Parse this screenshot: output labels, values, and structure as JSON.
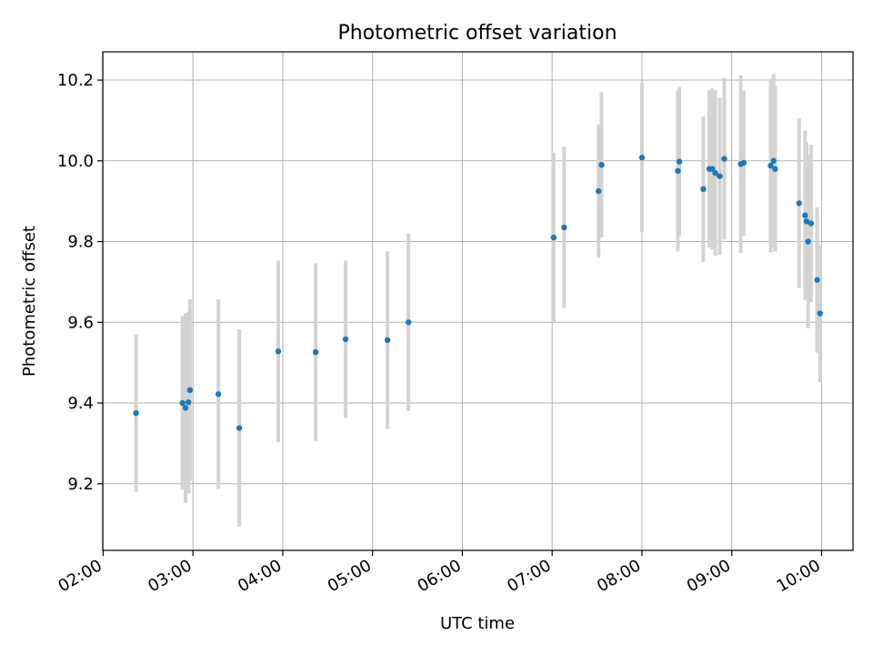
{
  "chart_data": {
    "type": "scatter",
    "title": "Photometric offset variation",
    "xlabel": "UTC time",
    "ylabel": "Photometric offset",
    "x_tick_labels": [
      "02:00",
      "03:00",
      "04:00",
      "05:00",
      "06:00",
      "07:00",
      "08:00",
      "09:00",
      "10:00"
    ],
    "y_tick_labels": [
      "9.2",
      "9.4",
      "9.6",
      "9.8",
      "10.0",
      "10.2"
    ],
    "xlim": [
      "01:59:45",
      "10:21:00"
    ],
    "ylim": [
      9.035,
      10.27
    ],
    "grid": true,
    "colors": {
      "point": "#1f77b4",
      "error_bar": "#d3d3d3",
      "grid": "#b0b0b0",
      "axes": "#000000"
    },
    "series": [
      {
        "points": [
          {
            "x": "02:22",
            "y": 9.375,
            "y_error": 0.195
          },
          {
            "x": "02:53",
            "y": 9.4,
            "y_error": 0.215
          },
          {
            "x": "02:55",
            "y": 9.388,
            "y_error": 0.235
          },
          {
            "x": "02:57",
            "y": 9.402,
            "y_error": 0.225
          },
          {
            "x": "02:58",
            "y": 9.432,
            "y_error": 0.225
          },
          {
            "x": "03:17",
            "y": 9.422,
            "y_error": 0.235
          },
          {
            "x": "03:31",
            "y": 9.338,
            "y_error": 0.245
          },
          {
            "x": "03:57",
            "y": 9.528,
            "y_error": 0.225
          },
          {
            "x": "04:22",
            "y": 9.526,
            "y_error": 0.22
          },
          {
            "x": "04:42",
            "y": 9.558,
            "y_error": 0.195
          },
          {
            "x": "05:10",
            "y": 9.556,
            "y_error": 0.22
          },
          {
            "x": "05:24",
            "y": 9.6,
            "y_error": 0.22
          },
          {
            "x": "07:01",
            "y": 9.81,
            "y_error": 0.21
          },
          {
            "x": "07:08",
            "y": 9.835,
            "y_error": 0.2
          },
          {
            "x": "07:31",
            "y": 9.925,
            "y_error": 0.165
          },
          {
            "x": "07:33",
            "y": 9.99,
            "y_error": 0.18
          },
          {
            "x": "08:00",
            "y": 10.008,
            "y_error": 0.185
          },
          {
            "x": "08:24",
            "y": 9.975,
            "y_error": 0.2
          },
          {
            "x": "08:25",
            "y": 9.998,
            "y_error": 0.185
          },
          {
            "x": "08:41",
            "y": 9.93,
            "y_error": 0.18
          },
          {
            "x": "08:45",
            "y": 9.98,
            "y_error": 0.195
          },
          {
            "x": "08:47",
            "y": 9.98,
            "y_error": 0.2
          },
          {
            "x": "08:49",
            "y": 9.97,
            "y_error": 0.205
          },
          {
            "x": "08:52",
            "y": 9.962,
            "y_error": 0.195
          },
          {
            "x": "08:55",
            "y": 10.005,
            "y_error": 0.2
          },
          {
            "x": "09:06",
            "y": 9.992,
            "y_error": 0.22
          },
          {
            "x": "09:08",
            "y": 9.995,
            "y_error": 0.18
          },
          {
            "x": "09:26",
            "y": 9.988,
            "y_error": 0.215
          },
          {
            "x": "09:28",
            "y": 10.0,
            "y_error": 0.215
          },
          {
            "x": "09:29",
            "y": 9.98,
            "y_error": 0.205
          },
          {
            "x": "09:45",
            "y": 9.895,
            "y_error": 0.21
          },
          {
            "x": "09:49",
            "y": 9.865,
            "y_error": 0.21
          },
          {
            "x": "09:50",
            "y": 9.85,
            "y_error": 0.195
          },
          {
            "x": "09:51",
            "y": 9.8,
            "y_error": 0.215
          },
          {
            "x": "09:53",
            "y": 9.845,
            "y_error": 0.195
          },
          {
            "x": "09:57",
            "y": 9.705,
            "y_error": 0.18
          },
          {
            "x": "09:59",
            "y": 9.622,
            "y_error": 0.17
          }
        ]
      }
    ]
  }
}
